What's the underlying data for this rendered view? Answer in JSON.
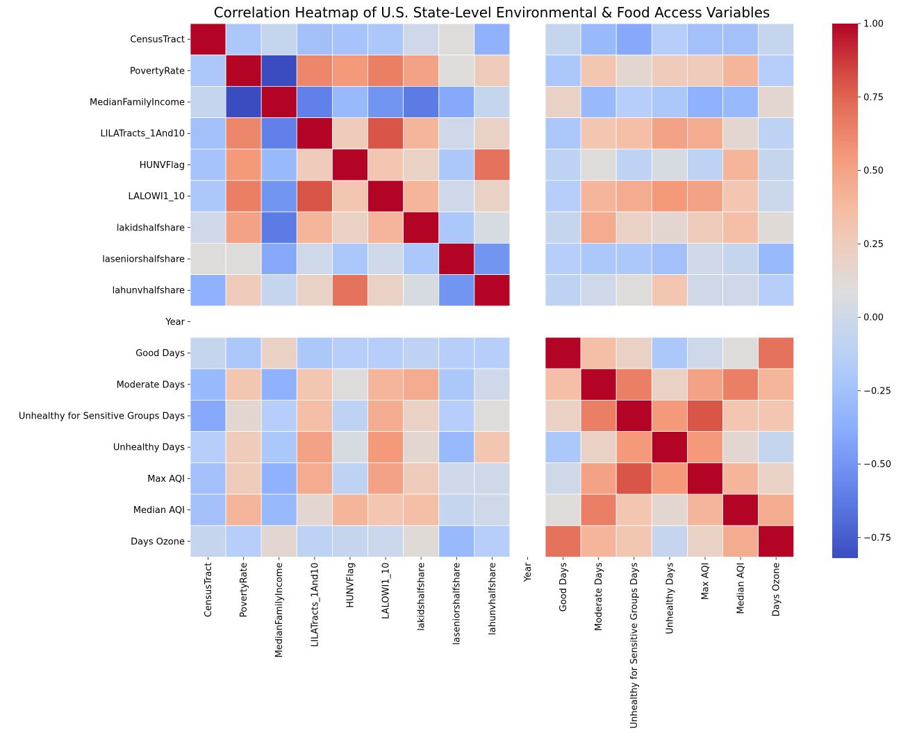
{
  "chart_data": {
    "type": "heatmap",
    "title": "Correlation Heatmap of U.S. State-Level Environmental & Food Access Variables",
    "colormap": "coolwarm",
    "vmin": -0.82,
    "vmax": 1.0,
    "colorbar_ticks": [
      1.0,
      0.75,
      0.5,
      0.25,
      0.0,
      -0.25,
      -0.5,
      -0.75
    ],
    "colorbar_tick_labels": [
      "1.00",
      "0.75",
      "0.50",
      "0.25",
      "0.00",
      "−0.25",
      "−0.50",
      "−0.75"
    ],
    "variables": [
      "CensusTract",
      "PovertyRate",
      "MedianFamilyIncome",
      "LILATracts_1And10",
      "HUNVFlag",
      "LALOWI1_10",
      "lakidshalfshare",
      "laseniorshalfshare",
      "lahunvhalfshare",
      "Year",
      "Good Days",
      "Moderate Days",
      "Unhealthy for Sensitive Groups Days",
      "Unhealthy Days",
      "Max AQI",
      "Median AQI",
      "Days Ozone"
    ],
    "missing_note": "Year row and column are empty (NaN correlations)",
    "matrix": [
      [
        1.0,
        -0.2,
        -0.05,
        -0.25,
        -0.23,
        -0.2,
        0.0,
        0.1,
        -0.35,
        null,
        -0.05,
        -0.3,
        -0.4,
        -0.15,
        -0.25,
        -0.25,
        -0.05
      ],
      [
        -0.2,
        1.0,
        -0.82,
        0.62,
        0.55,
        0.65,
        0.5,
        0.1,
        0.25,
        null,
        -0.2,
        0.3,
        0.15,
        0.25,
        0.25,
        0.4,
        -0.15
      ],
      [
        -0.05,
        -0.82,
        1.0,
        -0.6,
        -0.3,
        -0.5,
        -0.62,
        -0.4,
        -0.05,
        null,
        0.2,
        -0.3,
        -0.15,
        -0.2,
        -0.35,
        -0.3,
        0.15
      ],
      [
        -0.25,
        0.62,
        -0.6,
        1.0,
        0.25,
        0.8,
        0.4,
        0.0,
        0.2,
        null,
        -0.2,
        0.3,
        0.35,
        0.5,
        0.45,
        0.15,
        -0.1
      ],
      [
        -0.23,
        0.55,
        -0.3,
        0.25,
        1.0,
        0.3,
        0.2,
        -0.2,
        0.7,
        null,
        -0.1,
        0.1,
        -0.1,
        0.05,
        -0.1,
        0.4,
        -0.05
      ],
      [
        -0.2,
        0.65,
        -0.5,
        0.8,
        0.3,
        1.0,
        0.4,
        0.0,
        0.2,
        null,
        -0.15,
        0.4,
        0.45,
        0.55,
        0.5,
        0.3,
        -0.02
      ],
      [
        0.0,
        0.5,
        -0.62,
        0.4,
        0.2,
        0.4,
        1.0,
        -0.2,
        0.05,
        null,
        -0.05,
        0.45,
        0.2,
        0.15,
        0.25,
        0.35,
        0.12
      ],
      [
        0.1,
        0.1,
        -0.4,
        0.0,
        -0.2,
        0.0,
        -0.2,
        1.0,
        -0.5,
        null,
        -0.15,
        -0.2,
        -0.2,
        -0.25,
        0.0,
        -0.05,
        -0.3
      ],
      [
        -0.35,
        0.25,
        -0.05,
        0.2,
        0.7,
        0.2,
        0.05,
        -0.5,
        1.0,
        null,
        -0.1,
        0.0,
        0.1,
        0.3,
        0.0,
        0.0,
        -0.15
      ],
      [
        null,
        null,
        null,
        null,
        null,
        null,
        null,
        null,
        null,
        null,
        null,
        null,
        null,
        null,
        null,
        null,
        null
      ],
      [
        -0.05,
        -0.2,
        0.2,
        -0.2,
        -0.15,
        -0.15,
        -0.1,
        -0.15,
        -0.15,
        null,
        1.0,
        0.35,
        0.2,
        -0.2,
        0.0,
        0.1,
        0.7
      ],
      [
        -0.3,
        0.3,
        -0.35,
        0.3,
        0.1,
        0.4,
        0.45,
        -0.2,
        0.0,
        null,
        0.35,
        1.0,
        0.65,
        0.2,
        0.5,
        0.65,
        0.4
      ],
      [
        -0.4,
        0.15,
        -0.15,
        0.35,
        -0.1,
        0.45,
        0.2,
        -0.15,
        0.1,
        null,
        0.2,
        0.65,
        1.0,
        0.55,
        0.8,
        0.3,
        0.3
      ],
      [
        -0.15,
        0.25,
        -0.2,
        0.5,
        0.05,
        0.55,
        0.15,
        -0.3,
        0.3,
        null,
        -0.2,
        0.2,
        0.55,
        1.0,
        0.55,
        0.15,
        -0.05
      ],
      [
        -0.25,
        0.25,
        -0.35,
        0.45,
        -0.1,
        0.5,
        0.25,
        0.0,
        0.0,
        null,
        0.0,
        0.5,
        0.8,
        0.55,
        1.0,
        0.4,
        0.2
      ],
      [
        -0.25,
        0.4,
        -0.3,
        0.15,
        0.4,
        0.3,
        0.35,
        -0.05,
        0.0,
        null,
        0.1,
        0.65,
        0.3,
        0.15,
        0.4,
        1.0,
        0.45
      ],
      [
        -0.05,
        -0.15,
        0.15,
        -0.1,
        -0.05,
        -0.02,
        0.12,
        -0.3,
        -0.15,
        null,
        0.7,
        0.4,
        0.3,
        -0.05,
        0.2,
        0.45,
        1.0
      ]
    ]
  }
}
